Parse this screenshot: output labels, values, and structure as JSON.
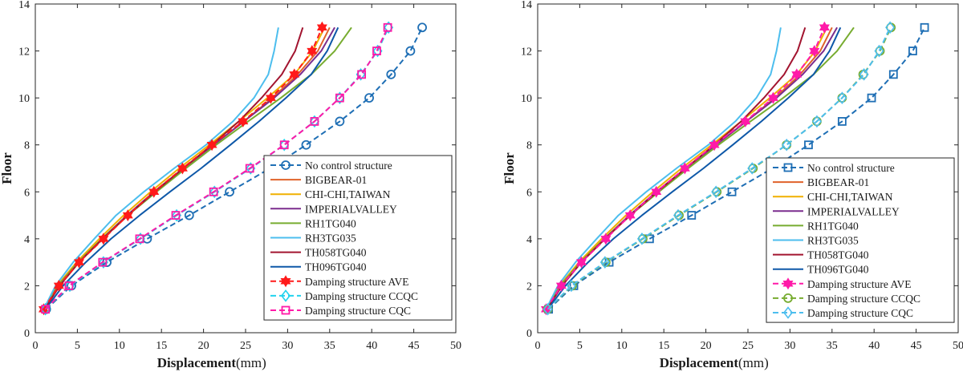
{
  "figure": {
    "panels": 2
  },
  "styles": {
    "No control structure": {
      "color": "#1f6fb5",
      "dash": true,
      "marker": "circle"
    },
    "BIGBEAR-01": {
      "color": "#e0622a",
      "dash": false,
      "marker": "none"
    },
    "CHI-CHI,TAIWAN": {
      "color": "#f0b000",
      "dash": false,
      "marker": "none"
    },
    "IMPERIALVALLEY": {
      "color": "#7b2d8e",
      "dash": false,
      "marker": "none"
    },
    "RH1TG040": {
      "color": "#77ac30",
      "dash": false,
      "marker": "none"
    },
    "RH3TG035": {
      "color": "#4dbeee",
      "dash": false,
      "marker": "none"
    },
    "TH058TG040": {
      "color": "#a2142f",
      "dash": false,
      "marker": "none"
    },
    "TH096TG040": {
      "color": "#0e58a8",
      "dash": false,
      "marker": "none"
    },
    "Damping structure AVE": {
      "color": "#ff1a1a",
      "dash": true,
      "marker": "hexagram"
    },
    "Damping structure CCQC": {
      "color": "#22d3ee",
      "dash": true,
      "marker": "diamond"
    },
    "Damping structure CQC": {
      "color": "#ff1aa8",
      "dash": true,
      "marker": "square"
    }
  },
  "chart_data": [
    {
      "type": "line",
      "xlabel": "Displacement",
      "xunit": "(mm)",
      "ylabel": "Floor",
      "xlim": [
        0,
        50
      ],
      "ylim": [
        0,
        14
      ],
      "xticks": [
        0,
        5,
        10,
        15,
        20,
        25,
        30,
        35,
        40,
        45,
        50
      ],
      "yticks": [
        0,
        2,
        4,
        6,
        8,
        10,
        12,
        14
      ],
      "grid": false,
      "legend_position": "bottom-right",
      "series": [
        {
          "name": "No control structure",
          "x": [
            1.3,
            4.3,
            8.5,
            13.3,
            18.3,
            23.1,
            27.9,
            32.2,
            36.2,
            39.7,
            42.3,
            44.6,
            46.0
          ],
          "y": [
            1,
            2,
            3,
            4,
            5,
            6,
            7,
            8,
            9,
            10,
            11,
            12,
            13
          ]
        },
        {
          "name": "BIGBEAR-01",
          "x": [
            1.0,
            2.8,
            5.2,
            8.0,
            11.0,
            14.2,
            17.6,
            21.2,
            24.8,
            28.2,
            31.2,
            33.6,
            35.0
          ],
          "y": [
            1,
            2,
            3,
            4,
            5,
            6,
            7,
            8,
            9,
            10,
            11,
            12,
            13
          ]
        },
        {
          "name": "CHI-CHI,TAIWAN",
          "x": [
            1.0,
            2.6,
            4.9,
            7.6,
            10.5,
            13.7,
            17.1,
            20.7,
            24.2,
            27.6,
            30.8,
            33.0,
            34.4
          ],
          "y": [
            1,
            2,
            3,
            4,
            5,
            6,
            7,
            8,
            9,
            10,
            11,
            12,
            13
          ]
        },
        {
          "name": "IMPERIALVALLEY",
          "x": [
            1.0,
            2.7,
            5.1,
            7.9,
            10.9,
            14.1,
            17.6,
            21.2,
            24.8,
            28.4,
            31.5,
            34.0,
            35.6
          ],
          "y": [
            1,
            2,
            3,
            4,
            5,
            6,
            7,
            8,
            9,
            10,
            11,
            12,
            13
          ]
        },
        {
          "name": "RH1TG040",
          "x": [
            1.0,
            2.7,
            5.1,
            7.9,
            11.0,
            14.4,
            17.9,
            21.5,
            25.3,
            29.2,
            32.8,
            35.6,
            37.6
          ],
          "y": [
            1,
            2,
            3,
            4,
            5,
            6,
            7,
            8,
            9,
            10,
            11,
            12,
            13
          ]
        },
        {
          "name": "RH3TG035",
          "x": [
            1.0,
            2.4,
            4.5,
            7.0,
            9.6,
            12.9,
            16.5,
            20.3,
            23.5,
            26.0,
            27.7,
            28.4,
            28.9
          ],
          "y": [
            1,
            2,
            3,
            4,
            5,
            6,
            7,
            8,
            9,
            10,
            11,
            12,
            13
          ]
        },
        {
          "name": "TH058TG040",
          "x": [
            1.1,
            2.9,
            5.2,
            8.0,
            11.0,
            14.2,
            17.6,
            21.0,
            24.2,
            26.9,
            29.3,
            30.9,
            31.8
          ],
          "y": [
            1,
            2,
            3,
            4,
            5,
            6,
            7,
            8,
            9,
            10,
            11,
            12,
            13
          ]
        },
        {
          "name": "TH096TG040",
          "x": [
            1.2,
            3.3,
            6.0,
            9.0,
            12.4,
            16.0,
            19.7,
            23.2,
            26.6,
            29.8,
            32.8,
            34.7,
            36.0
          ],
          "y": [
            1,
            2,
            3,
            4,
            5,
            6,
            7,
            8,
            9,
            10,
            11,
            12,
            13
          ]
        },
        {
          "name": "Damping structure AVE",
          "x": [
            1.0,
            2.8,
            5.2,
            8.1,
            11.0,
            14.1,
            17.5,
            21.0,
            24.7,
            28.0,
            30.8,
            32.9,
            34.1
          ],
          "y": [
            1,
            2,
            3,
            4,
            5,
            6,
            7,
            8,
            9,
            10,
            11,
            12,
            13
          ]
        },
        {
          "name": "Damping structure CCQC",
          "x": [
            1.2,
            4.1,
            8.1,
            12.5,
            16.8,
            21.3,
            25.6,
            29.6,
            33.2,
            36.2,
            38.7,
            40.7,
            42.0
          ],
          "y": [
            1,
            2,
            3,
            4,
            5,
            6,
            7,
            8,
            9,
            10,
            11,
            12,
            13
          ]
        },
        {
          "name": "Damping structure CQC",
          "x": [
            1.2,
            4.0,
            8.0,
            12.4,
            16.7,
            21.2,
            25.5,
            29.6,
            33.2,
            36.2,
            38.8,
            40.6,
            41.9
          ],
          "y": [
            1,
            2,
            3,
            4,
            5,
            6,
            7,
            8,
            9,
            10,
            11,
            12,
            13
          ]
        }
      ]
    },
    {
      "type": "line",
      "xlabel": "Displacement",
      "xunit": "(mm)",
      "ylabel": "Floor",
      "xlim": [
        0,
        50
      ],
      "ylim": [
        0,
        14
      ],
      "xticks": [
        0,
        5,
        10,
        15,
        20,
        25,
        30,
        35,
        40,
        45,
        50
      ],
      "yticks": [
        0,
        2,
        4,
        6,
        8,
        10,
        12,
        14
      ],
      "grid": false,
      "legend_position": "bottom-right",
      "series": [
        {
          "name": "No control structure",
          "x": [
            1.3,
            4.3,
            8.5,
            13.3,
            18.3,
            23.1,
            27.9,
            32.2,
            36.2,
            39.7,
            42.3,
            44.6,
            46.0
          ],
          "y": [
            1,
            2,
            3,
            4,
            5,
            6,
            7,
            8,
            9,
            10,
            11,
            12,
            13
          ]
        },
        {
          "name": "BIGBEAR-01",
          "x": [
            1.0,
            2.8,
            5.2,
            8.0,
            11.0,
            14.2,
            17.6,
            21.2,
            24.8,
            28.2,
            31.2,
            33.6,
            35.0
          ],
          "y": [
            1,
            2,
            3,
            4,
            5,
            6,
            7,
            8,
            9,
            10,
            11,
            12,
            13
          ]
        },
        {
          "name": "CHI-CHI,TAIWAN",
          "x": [
            1.0,
            2.6,
            4.9,
            7.6,
            10.5,
            13.7,
            17.1,
            20.7,
            24.2,
            27.6,
            30.8,
            33.0,
            34.4
          ],
          "y": [
            1,
            2,
            3,
            4,
            5,
            6,
            7,
            8,
            9,
            10,
            11,
            12,
            13
          ]
        },
        {
          "name": "IMPERIALVALLEY",
          "x": [
            1.0,
            2.7,
            5.1,
            7.9,
            10.9,
            14.1,
            17.6,
            21.2,
            24.8,
            28.4,
            31.5,
            34.0,
            35.6
          ],
          "y": [
            1,
            2,
            3,
            4,
            5,
            6,
            7,
            8,
            9,
            10,
            11,
            12,
            13
          ]
        },
        {
          "name": "RH1TG040",
          "x": [
            1.0,
            2.7,
            5.1,
            7.9,
            11.0,
            14.4,
            17.9,
            21.5,
            25.3,
            29.2,
            32.8,
            35.6,
            37.6
          ],
          "y": [
            1,
            2,
            3,
            4,
            5,
            6,
            7,
            8,
            9,
            10,
            11,
            12,
            13
          ]
        },
        {
          "name": "RH3TG035",
          "x": [
            1.0,
            2.4,
            4.5,
            7.0,
            9.6,
            12.9,
            16.5,
            20.3,
            23.5,
            26.0,
            27.7,
            28.4,
            28.9
          ],
          "y": [
            1,
            2,
            3,
            4,
            5,
            6,
            7,
            8,
            9,
            10,
            11,
            12,
            13
          ]
        },
        {
          "name": "TH058TG040",
          "x": [
            1.1,
            2.9,
            5.2,
            8.0,
            11.0,
            14.2,
            17.6,
            21.0,
            24.2,
            26.9,
            29.3,
            30.9,
            31.8
          ],
          "y": [
            1,
            2,
            3,
            4,
            5,
            6,
            7,
            8,
            9,
            10,
            11,
            12,
            13
          ]
        },
        {
          "name": "TH096TG040",
          "x": [
            1.2,
            3.3,
            6.0,
            9.0,
            12.4,
            16.0,
            19.7,
            23.2,
            26.6,
            29.8,
            32.8,
            34.7,
            36.0
          ],
          "y": [
            1,
            2,
            3,
            4,
            5,
            6,
            7,
            8,
            9,
            10,
            11,
            12,
            13
          ]
        },
        {
          "name": "Damping structure AVE",
          "x": [
            1.0,
            2.8,
            5.2,
            8.1,
            11.0,
            14.1,
            17.5,
            21.0,
            24.7,
            28.0,
            30.8,
            32.9,
            34.1
          ],
          "y": [
            1,
            2,
            3,
            4,
            5,
            6,
            7,
            8,
            9,
            10,
            11,
            12,
            13
          ]
        },
        {
          "name": "Damping structure CCQC",
          "x": [
            1.2,
            4.1,
            8.1,
            12.5,
            16.8,
            21.3,
            25.6,
            29.6,
            33.2,
            36.2,
            38.7,
            40.7,
            42.0
          ],
          "y": [
            1,
            2,
            3,
            4,
            5,
            6,
            7,
            8,
            9,
            10,
            11,
            12,
            13
          ]
        },
        {
          "name": "Damping structure CQC",
          "x": [
            1.2,
            4.0,
            8.0,
            12.4,
            16.7,
            21.2,
            25.5,
            29.6,
            33.2,
            36.2,
            38.8,
            40.6,
            41.9
          ],
          "y": [
            1,
            2,
            3,
            4,
            5,
            6,
            7,
            8,
            9,
            10,
            11,
            12,
            13
          ]
        }
      ]
    }
  ],
  "panel_styles": [
    {
      "Damping structure AVE": {
        "color": "#ff1a1a",
        "marker": "hexagram"
      },
      "Damping structure CCQC": {
        "color": "#22d3ee",
        "marker": "diamond"
      },
      "Damping structure CQC": {
        "color": "#ff1aa8",
        "marker": "square"
      },
      "No control structure": {
        "color": "#1f6fb5",
        "marker": "circle"
      }
    },
    {
      "Damping structure AVE": {
        "color": "#ff1aa8",
        "marker": "hexagram"
      },
      "Damping structure CCQC": {
        "color": "#77ac30",
        "marker": "circle"
      },
      "Damping structure CQC": {
        "color": "#4dbeee",
        "marker": "diamond"
      },
      "No control structure": {
        "color": "#1f6fb5",
        "marker": "square"
      }
    }
  ]
}
